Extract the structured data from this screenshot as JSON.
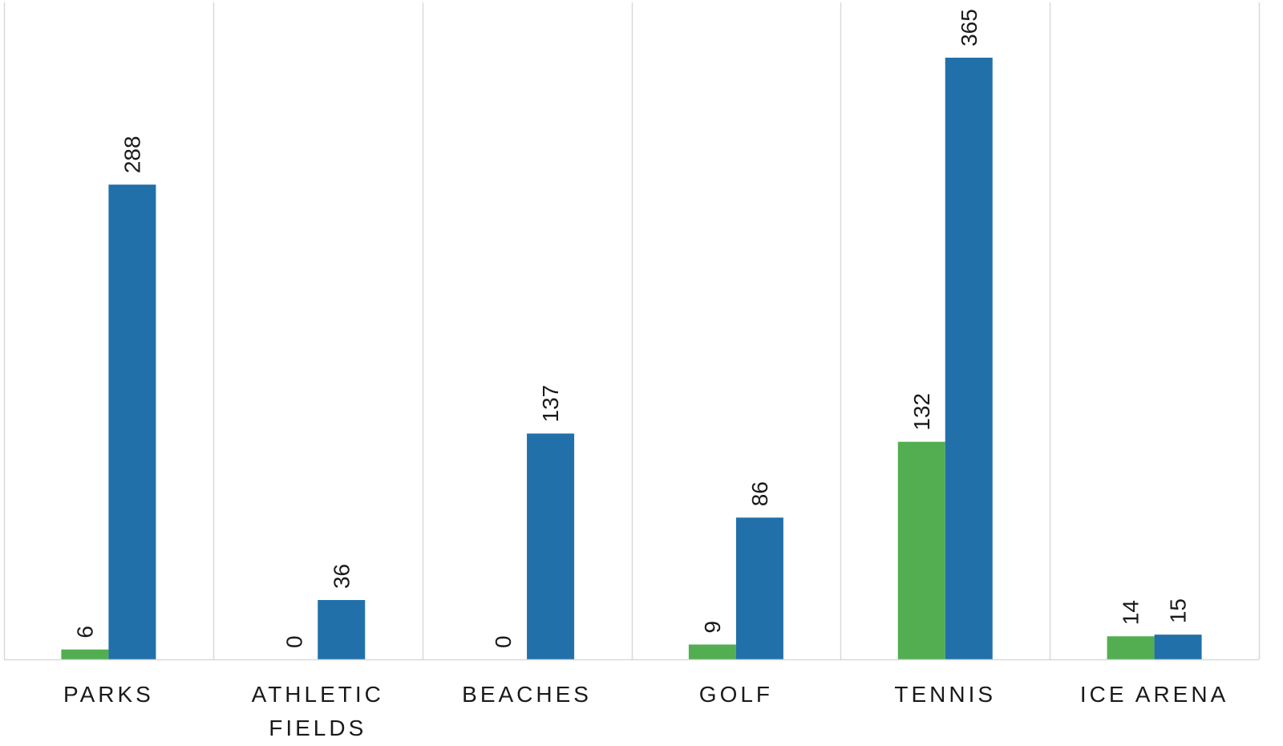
{
  "chart_data": {
    "type": "bar",
    "categories": [
      [
        "PARKS"
      ],
      [
        "ATHLETIC",
        "FIELDS"
      ],
      [
        "BEACHES"
      ],
      [
        "GOLF"
      ],
      [
        "TENNIS"
      ],
      [
        "ICE ARENA"
      ]
    ],
    "series": [
      {
        "values": [
          6,
          0,
          0,
          9,
          132,
          14
        ],
        "color": "#53ae52"
      },
      {
        "values": [
          288,
          36,
          137,
          86,
          365,
          15
        ],
        "color": "#2170aa"
      }
    ],
    "ylim": [
      0,
      400
    ],
    "data_labels": true,
    "data_label_orientation": "vertical",
    "grid": "vertical-separators",
    "grid_color": "#d9d9d9",
    "axis_color": "#d9d9d9",
    "legend": "none",
    "title": "",
    "xlabel": "",
    "ylabel": ""
  }
}
